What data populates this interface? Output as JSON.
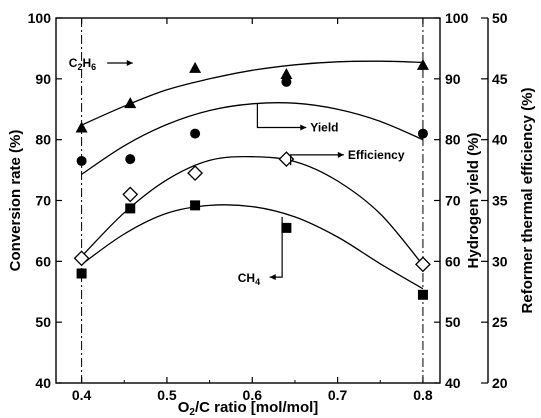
{
  "chart_data": {
    "type": "scatter",
    "title": "",
    "x_axis": {
      "label_main": "O",
      "label_sub": "2",
      "label_rest": "/C ratio [mol/mol]",
      "range": [
        0.37,
        0.82
      ],
      "ticks": [
        0.4,
        0.5,
        0.6,
        0.7,
        0.8
      ],
      "tick_labels": [
        "0.4",
        "0.5",
        "0.6",
        "0.7",
        "0.8"
      ]
    },
    "y_axis_left": {
      "label": "Conversion rate (%)",
      "range": [
        40,
        100
      ],
      "ticks": [
        40,
        50,
        60,
        70,
        80,
        90,
        100
      ],
      "tick_labels": [
        "40",
        "50",
        "60",
        "70",
        "80",
        "90",
        "100"
      ]
    },
    "y_axis_right1": {
      "label": "Hydrogen yield (%)",
      "range": [
        40,
        100
      ],
      "ticks": [
        40,
        50,
        60,
        70,
        80,
        90,
        100
      ],
      "tick_labels": [
        "40",
        "50",
        "60",
        "70",
        "80",
        "90",
        "100"
      ]
    },
    "y_axis_right2": {
      "label": "Reformer thermal efficiency (%)",
      "range": [
        20,
        50
      ],
      "ticks": [
        20,
        25,
        30,
        35,
        40,
        45,
        50
      ],
      "tick_labels": [
        "20",
        "25",
        "30",
        "35",
        "40",
        "45",
        "50"
      ]
    },
    "vertical_reference_lines": [
      0.4,
      0.8
    ],
    "grid": false,
    "series": [
      {
        "name": "C",
        "name_sub": "2",
        "name_rest": "H",
        "name_sub2": "6",
        "axis": "left",
        "marker": "triangle",
        "points": [
          [
            0.4,
            82
          ],
          [
            0.457,
            86
          ],
          [
            0.533,
            91.8
          ],
          [
            0.64,
            90.8
          ],
          [
            0.8,
            92.3
          ]
        ],
        "fit": [
          [
            0.4,
            82.4
          ],
          [
            0.45,
            85.5
          ],
          [
            0.5,
            88.2
          ],
          [
            0.55,
            90.0
          ],
          [
            0.6,
            91.4
          ],
          [
            0.65,
            92.3
          ],
          [
            0.7,
            92.8
          ],
          [
            0.75,
            92.9
          ],
          [
            0.8,
            92.7
          ]
        ]
      },
      {
        "name": "Yield",
        "axis": "right1",
        "marker": "circle",
        "points": [
          [
            0.4,
            76.5
          ],
          [
            0.457,
            76.8
          ],
          [
            0.533,
            81
          ],
          [
            0.64,
            89.5
          ],
          [
            0.8,
            81
          ]
        ],
        "fit": [
          [
            0.4,
            74.3
          ],
          [
            0.45,
            79.0
          ],
          [
            0.5,
            82.5
          ],
          [
            0.55,
            84.8
          ],
          [
            0.6,
            85.9
          ],
          [
            0.65,
            86.0
          ],
          [
            0.7,
            85.0
          ],
          [
            0.75,
            83.0
          ],
          [
            0.8,
            80.0
          ]
        ]
      },
      {
        "name": "Efficiency",
        "axis": "right2",
        "marker": "diamond-open",
        "points": [
          [
            0.4,
            30.25
          ],
          [
            0.457,
            35.5
          ],
          [
            0.533,
            37.25
          ],
          [
            0.64,
            38.4
          ],
          [
            0.8,
            29.75
          ]
        ],
        "fit": [
          [
            0.4,
            30.4
          ],
          [
            0.45,
            34.0
          ],
          [
            0.5,
            36.7
          ],
          [
            0.55,
            38.3
          ],
          [
            0.6,
            38.6
          ],
          [
            0.65,
            38.2
          ],
          [
            0.7,
            36.6
          ],
          [
            0.75,
            33.9
          ],
          [
            0.8,
            29.7
          ]
        ]
      },
      {
        "name": "CH",
        "name_sub": "4",
        "axis": "left",
        "marker": "square",
        "points": [
          [
            0.4,
            58
          ],
          [
            0.457,
            68.7
          ],
          [
            0.533,
            69.2
          ],
          [
            0.64,
            65.5
          ],
          [
            0.8,
            54.5
          ]
        ],
        "fit": [
          [
            0.4,
            59.5
          ],
          [
            0.45,
            64.5
          ],
          [
            0.5,
            67.9
          ],
          [
            0.55,
            69.2
          ],
          [
            0.6,
            69.0
          ],
          [
            0.65,
            67.3
          ],
          [
            0.7,
            64.0
          ],
          [
            0.75,
            59.6
          ],
          [
            0.8,
            55.5
          ]
        ]
      }
    ],
    "annotations": [
      {
        "series": "C2H6",
        "text_x": 0.37,
        "text_y": 92.6,
        "arrow_to_x": 0.46,
        "arrow_to_y": 92.6
      },
      {
        "series": "Yield",
        "text_x": 0.668,
        "text_y": 82.0,
        "arrow_from_x": 0.606,
        "arrow_from_y": 85.9
      },
      {
        "series": "Efficiency",
        "text_x": 0.712,
        "text_y": 77.5,
        "arrow_from_x": 0.645,
        "arrow_from_y": 75.8
      },
      {
        "series": "CH4",
        "text_x": 0.59,
        "text_y": 57.4,
        "arrow_from_x": 0.635,
        "arrow_from_y": 67.3
      }
    ]
  }
}
